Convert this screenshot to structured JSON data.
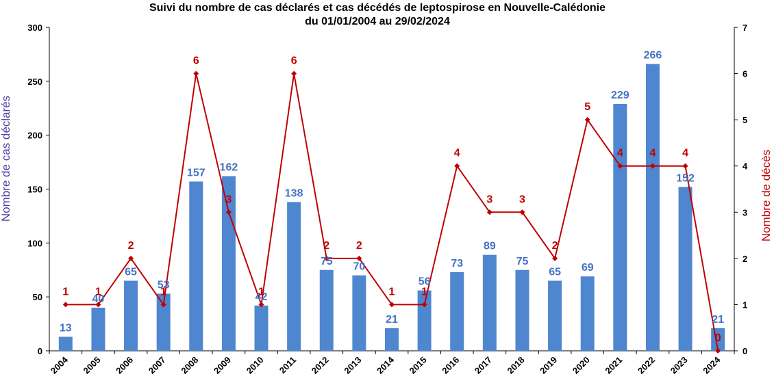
{
  "chart_data": {
    "type": "bar",
    "title_lines": [
      "Suivi du nombre de cas déclarés et cas décédés de leptospirose en Nouvelle-Calédonie",
      "du 01/01/2004  au 29/02/2024"
    ],
    "categories": [
      "2004",
      "2005",
      "2006",
      "2007",
      "2008",
      "2009",
      "2010",
      "2011",
      "2012",
      "2013",
      "2014",
      "2015",
      "2016",
      "2017",
      "2018",
      "2019",
      "2020",
      "2021",
      "2022",
      "2023",
      "2024"
    ],
    "series": [
      {
        "type": "bar",
        "axis": "left",
        "color": "#4F86D0",
        "label_color": "#4472C4",
        "values": [
          13,
          40,
          65,
          53,
          157,
          162,
          42,
          138,
          75,
          70,
          21,
          56,
          73,
          89,
          75,
          65,
          69,
          229,
          266,
          152,
          21
        ]
      },
      {
        "type": "line",
        "axis": "right",
        "color": "#C00000",
        "label_color": "#C00000",
        "values": [
          1,
          1,
          2,
          1,
          6,
          3,
          1,
          6,
          2,
          2,
          1,
          1,
          4,
          3,
          3,
          2,
          5,
          4,
          4,
          4,
          0
        ]
      }
    ],
    "ylabel_left": "Nombre de cas déclarés",
    "ylabel_left_color": "#4B3F9E",
    "ylabel_right": "Nombre de décès",
    "ylabel_right_color": "#C00000",
    "ylim_left": [
      0,
      300
    ],
    "yticks_left": [
      0,
      50,
      100,
      150,
      200,
      250,
      300
    ],
    "ylim_right": [
      0,
      7
    ],
    "yticks_right": [
      0,
      1,
      2,
      3,
      4,
      5,
      6,
      7
    ],
    "grid": false,
    "legend": "none"
  }
}
